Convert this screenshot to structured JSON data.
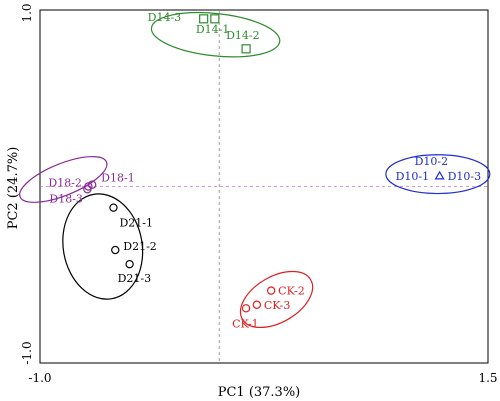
{
  "chart_data": {
    "type": "scatter",
    "title": "",
    "xlabel": "PC1 (37.3%)",
    "ylabel": "PC2 (24.7%)",
    "xlim": [
      -1.0,
      1.5
    ],
    "ylim": [
      -1.0,
      1.0
    ],
    "x_ticks": [
      "-1.0",
      "1.5"
    ],
    "y_ticks": [
      "1.0",
      "-1.0"
    ],
    "reference_lines": {
      "x": 0.0,
      "y": 0.0,
      "style": "dashed"
    },
    "groups": [
      {
        "id": "D14",
        "color": "#2e8b2e",
        "marker": "square",
        "ellipse": {
          "cx": -0.02,
          "cy": 0.86,
          "rx": 0.36,
          "ry": 0.12,
          "rotation_deg": 6
        },
        "points": [
          {
            "label": "D14-3",
            "x": -0.07,
            "y": 0.95
          },
          {
            "label": "D14-1",
            "x": -0.03,
            "y": 0.95
          },
          {
            "label": "D14-2",
            "x": 0.15,
            "y": 0.78
          }
        ]
      },
      {
        "id": "D10",
        "color": "#1f2fcf",
        "marker": "triangle",
        "ellipse": {
          "cx": 1.22,
          "cy": 0.07,
          "rx": 0.29,
          "ry": 0.11,
          "rotation_deg": 0
        },
        "points": [
          {
            "label": "D10-2",
            "x": 1.23,
            "y": 0.06
          },
          {
            "label": "D10-1",
            "x": 1.23,
            "y": 0.06
          },
          {
            "label": "D10-3",
            "x": 1.23,
            "y": 0.06
          }
        ]
      },
      {
        "id": "D18",
        "color": "#8a2a9a",
        "marker": "circle",
        "ellipse": {
          "cx": -0.87,
          "cy": 0.04,
          "rx": 0.26,
          "ry": 0.09,
          "rotation_deg": -22
        },
        "points": [
          {
            "label": "D18-2",
            "x": -0.73,
            "y": 0.0
          },
          {
            "label": "D18-1",
            "x": -0.72,
            "y": 0.01
          },
          {
            "label": "D18-3",
            "x": -0.73,
            "y": -0.01
          }
        ]
      },
      {
        "id": "D21",
        "color": "#000000",
        "marker": "circle",
        "ellipse": {
          "cx": -0.65,
          "cy": -0.34,
          "rx": 0.22,
          "ry": 0.3,
          "rotation_deg": -10
        },
        "points": [
          {
            "label": "D21-1",
            "x": -0.59,
            "y": -0.12
          },
          {
            "label": "D21-2",
            "x": -0.58,
            "y": -0.36
          },
          {
            "label": "D21-3",
            "x": -0.5,
            "y": -0.44
          }
        ]
      },
      {
        "id": "CK",
        "color": "#e02020",
        "marker": "circle",
        "ellipse": {
          "cx": 0.32,
          "cy": -0.64,
          "rx": 0.22,
          "ry": 0.13,
          "rotation_deg": -30
        },
        "points": [
          {
            "label": "CK-2",
            "x": 0.29,
            "y": -0.59
          },
          {
            "label": "CK-3",
            "x": 0.21,
            "y": -0.67
          },
          {
            "label": "CK-1",
            "x": 0.15,
            "y": -0.69
          }
        ]
      }
    ]
  }
}
